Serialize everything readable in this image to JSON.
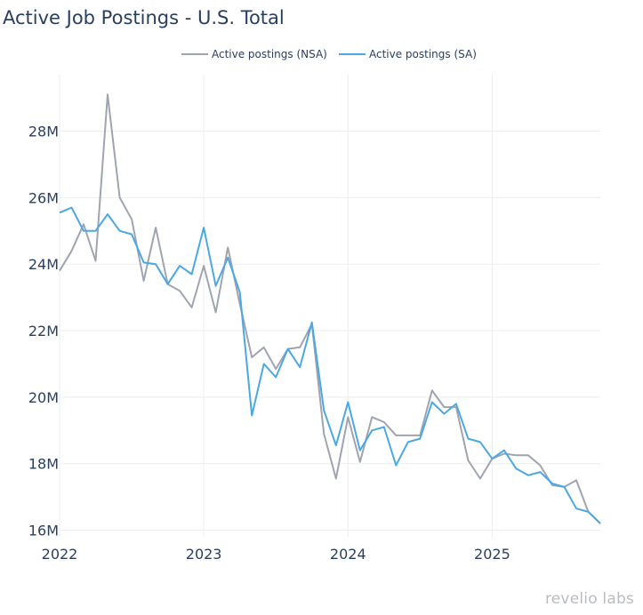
{
  "brand": "revelio labs",
  "colors": {
    "nsa": "#a0a4b0",
    "sa": "#4aa8e2",
    "grid": "#ebedf0",
    "text": "#2a3f5f"
  },
  "chart_data": {
    "type": "line",
    "title": "Active Job Postings - U.S. Total",
    "xlabel": "",
    "ylabel": "",
    "ylim": [
      15.8,
      29.7
    ],
    "y_ticks": [
      16,
      18,
      20,
      22,
      24,
      26,
      28
    ],
    "y_tick_labels": [
      "16M",
      "18M",
      "20M",
      "22M",
      "24M",
      "26M",
      "28M"
    ],
    "x_ticks": [
      "2022",
      "2023",
      "2024",
      "2025"
    ],
    "x_start": "2022-01",
    "legend_position": "top-center",
    "grid": true,
    "series": [
      {
        "name": "Active postings (NSA)",
        "color": "#a0a4b0",
        "values": [
          23.8,
          24.4,
          25.2,
          24.1,
          29.1,
          26.0,
          25.35,
          23.5,
          25.1,
          23.4,
          23.2,
          22.7,
          23.95,
          22.55,
          24.5,
          22.8,
          21.2,
          21.5,
          20.85,
          21.45,
          21.5,
          22.2,
          18.9,
          17.55,
          19.4,
          18.05,
          19.4,
          19.25,
          18.85,
          18.85,
          18.85,
          20.2,
          19.7,
          19.7,
          18.1,
          17.55,
          18.15,
          18.3,
          18.25,
          18.25,
          17.95,
          17.35,
          17.3,
          17.5,
          16.55,
          16.2
        ]
      },
      {
        "name": "Active postings (SA)",
        "color": "#4aa8e2",
        "values": [
          25.55,
          25.7,
          25.0,
          25.0,
          25.5,
          25.0,
          24.9,
          24.05,
          24.0,
          23.4,
          23.95,
          23.7,
          25.1,
          23.35,
          24.2,
          23.15,
          19.45,
          21.0,
          20.6,
          21.45,
          20.9,
          22.25,
          19.6,
          18.55,
          19.85,
          18.4,
          19.0,
          19.1,
          17.95,
          18.65,
          18.75,
          19.85,
          19.5,
          19.8,
          18.75,
          18.65,
          18.15,
          18.4,
          17.85,
          17.65,
          17.75,
          17.4,
          17.3,
          16.65,
          16.55,
          16.2
        ]
      }
    ]
  }
}
